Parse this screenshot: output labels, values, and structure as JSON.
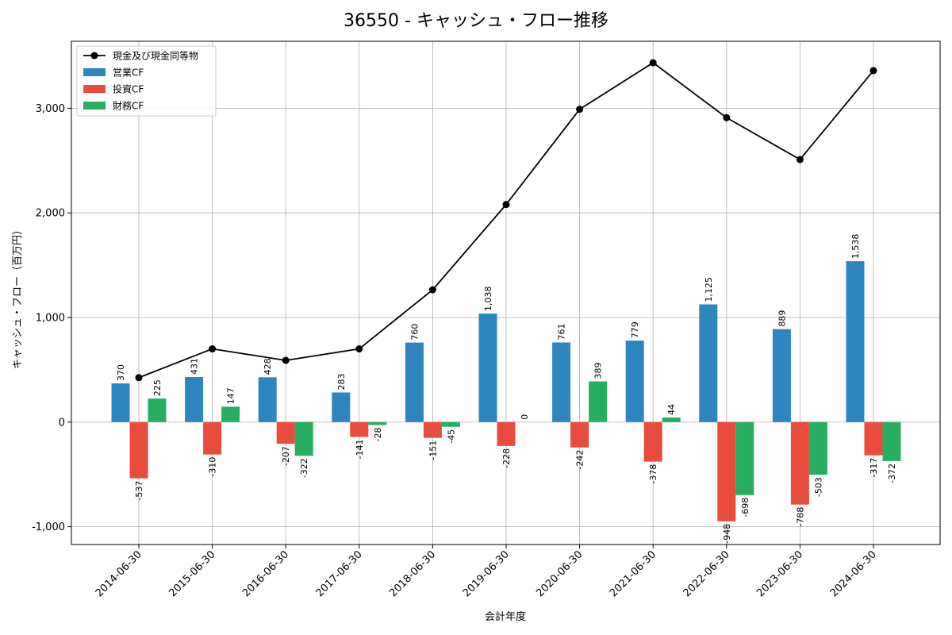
{
  "chart_data": {
    "type": "bar",
    "title": "36550 - キャッシュ・フロー推移",
    "xlabel": "会計年度",
    "ylabel": "キャッシュ・フロー（百万円）",
    "categories": [
      "2014-06-30",
      "2015-06-30",
      "2016-06-30",
      "2017-06-30",
      "2018-06-30",
      "2019-06-30",
      "2020-06-30",
      "2021-06-30",
      "2022-06-30",
      "2023-06-30",
      "2024-06-30"
    ],
    "ylim": [
      -1170,
      3640
    ],
    "yticks": [
      -1000,
      0,
      1000,
      2000,
      3000
    ],
    "ytick_labels": [
      "-1,000",
      "0",
      "1,000",
      "2,000",
      "3,000"
    ],
    "grid": true,
    "legend_position": "top-left",
    "series": [
      {
        "name": "営業CF",
        "kind": "bar",
        "color": "#2e86c1",
        "values": [
          370,
          431,
          428,
          283,
          760,
          1038,
          761,
          779,
          1125,
          889,
          1538
        ],
        "labels": [
          "370",
          "431",
          "428",
          "283",
          "760",
          "1,038",
          "761",
          "779",
          "1,125",
          "889",
          "1,538"
        ]
      },
      {
        "name": "投資CF",
        "kind": "bar",
        "color": "#e74c3c",
        "values": [
          -537,
          -310,
          -207,
          -141,
          -151,
          -228,
          -242,
          -378,
          -948,
          -788,
          -317
        ],
        "labels": [
          "-537",
          "-310",
          "-207",
          "-141",
          "-151",
          "-228",
          "-242",
          "-378",
          "-948",
          "-788",
          "-317"
        ]
      },
      {
        "name": "財務CF",
        "kind": "bar",
        "color": "#27ae60",
        "values": [
          225,
          147,
          -322,
          -28,
          -45,
          0,
          389,
          44,
          -698,
          -503,
          -372
        ],
        "labels": [
          "225",
          "147",
          "-322",
          "-28",
          "-45",
          "0",
          "389",
          "44",
          "-698",
          "-503",
          "-372"
        ]
      },
      {
        "name": "現金及び現金同等物",
        "kind": "line",
        "color": "#000000",
        "values": [
          425,
          700,
          590,
          700,
          1265,
          2080,
          2990,
          3435,
          2910,
          2510,
          3360
        ]
      }
    ]
  }
}
